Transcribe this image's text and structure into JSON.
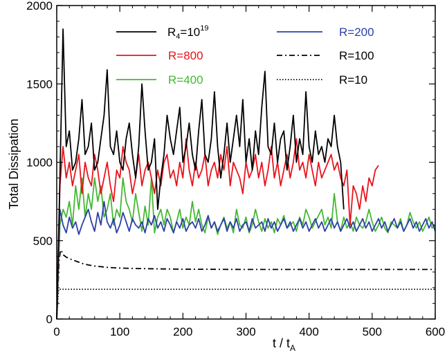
{
  "chart_data": {
    "type": "line",
    "title": "",
    "xlabel": "t / t",
    "xlabel_sub": "A",
    "ylabel": "Total Dissipation",
    "xlim": [
      0,
      600
    ],
    "ylim": [
      0,
      2000
    ],
    "xticks": [
      0,
      100,
      200,
      300,
      400,
      500,
      600
    ],
    "yticks": [
      0,
      500,
      1000,
      1500,
      2000
    ],
    "grid": false,
    "legend_placement": "top",
    "series": [
      {
        "name": "R",
        "name_sub": "4",
        "name_rest": "=10",
        "name_sup": "19",
        "color": "#000000",
        "dash": "solid",
        "x_start": 0,
        "x_step": 5,
        "values": [
          0,
          900,
          1850,
          1100,
          1200,
          950,
          1000,
          1150,
          1400,
          1050,
          1100,
          1250,
          950,
          1000,
          1150,
          1300,
          1590,
          1100,
          1050,
          1200,
          1000,
          950,
          1150,
          1250,
          1050,
          900,
          1100,
          1500,
          1200,
          950,
          1000,
          1150,
          700,
          900,
          1050,
          1300,
          1150,
          1050,
          1200,
          1350,
          1000,
          1100,
          1250,
          1050,
          950,
          1200,
          1400,
          1050,
          1000,
          1150,
          1450,
          1100,
          900,
          1050,
          1250,
          1000,
          1150,
          1300,
          1100,
          1400,
          1000,
          1150,
          950,
          1200,
          1050,
          1350,
          1580,
          1100,
          1050,
          1250,
          1000,
          1150,
          1200,
          950,
          1100,
          1300,
          1000,
          1150,
          1050,
          1450,
          1100,
          1000,
          1200,
          1050,
          1100,
          1000,
          1150,
          1100,
          1300,
          1100,
          1000,
          700
        ]
      },
      {
        "name": "R=800",
        "color": "#e8141c",
        "dash": "solid",
        "x_start": 0,
        "x_step": 5,
        "values": [
          0,
          850,
          1100,
          900,
          1000,
          850,
          950,
          1050,
          800,
          1000,
          900,
          850,
          1050,
          950,
          800,
          900,
          1000,
          850,
          750,
          950,
          900,
          1100,
          1000,
          950,
          800,
          900,
          1050,
          850,
          950,
          1000,
          900,
          800,
          950,
          850,
          1000,
          1050,
          900,
          950,
          850,
          1000,
          900,
          1150,
          950,
          850,
          1000,
          900,
          950,
          1050,
          850,
          950,
          1000,
          900,
          1050,
          950,
          1100,
          850,
          1000,
          950,
          900,
          800,
          1000,
          900,
          950,
          1050,
          900,
          1000,
          850,
          950,
          1100,
          900,
          1000,
          850,
          950,
          1050,
          900,
          1000,
          1150,
          950,
          1000,
          900,
          1050,
          950,
          850,
          1000,
          900,
          950,
          1000,
          1050,
          950,
          1000,
          900,
          850,
          950,
          600,
          850,
          800,
          700,
          850,
          750,
          900,
          850,
          950,
          980
        ]
      },
      {
        "name": "R=400",
        "color": "#44b832",
        "dash": "solid",
        "x_start": 0,
        "x_step": 5,
        "values": [
          0,
          600,
          700,
          650,
          750,
          600,
          850,
          700,
          900,
          650,
          800,
          700,
          900,
          750,
          850,
          650,
          700,
          800,
          600,
          700,
          650,
          900,
          750,
          700,
          620,
          800,
          680,
          560,
          720,
          600,
          900,
          550,
          650,
          700,
          600,
          700,
          650,
          550,
          620,
          700,
          580,
          650,
          600,
          750,
          620,
          700,
          600,
          550,
          650,
          580,
          620,
          540,
          600,
          650,
          580,
          620,
          550,
          700,
          600,
          580,
          650,
          550,
          600,
          700,
          620,
          560,
          640,
          580,
          620,
          550,
          640,
          600,
          660,
          580,
          600,
          620,
          560,
          650,
          600,
          700,
          650,
          580,
          620,
          660,
          700,
          600,
          650,
          580,
          800,
          620,
          560,
          650,
          580,
          620,
          560,
          650,
          600,
          580,
          620,
          700,
          620,
          560,
          600,
          650,
          580,
          550,
          620,
          600,
          580,
          640,
          560,
          600,
          680,
          620,
          580,
          620,
          560,
          600,
          650,
          580,
          600
        ]
      },
      {
        "name": "R=200",
        "color": "#2c3fa8",
        "dash": "solid",
        "x_start": 0,
        "x_step": 5,
        "values": [
          0,
          700,
          600,
          550,
          650,
          580,
          620,
          540,
          600,
          650,
          700,
          620,
          560,
          680,
          600,
          750,
          620,
          580,
          640,
          550,
          600,
          680,
          620,
          560,
          640,
          600,
          580,
          620,
          550,
          640,
          600,
          660,
          580,
          620,
          560,
          640,
          600,
          550,
          620,
          580,
          640,
          560,
          600,
          620,
          580,
          640,
          560,
          600,
          660,
          580,
          620,
          560,
          600,
          640,
          560,
          620,
          580,
          640,
          560,
          600,
          620,
          560,
          640,
          580,
          600,
          620,
          560,
          640,
          580,
          620,
          560,
          600,
          640,
          580,
          620,
          560,
          600,
          640,
          580,
          620,
          560,
          600,
          640,
          580,
          620,
          560,
          600,
          640,
          580,
          620,
          560,
          600,
          640,
          580,
          620,
          560,
          600,
          640,
          580,
          620,
          560,
          600,
          640,
          580,
          620,
          560,
          600,
          640,
          580,
          620,
          560,
          600,
          640,
          580,
          620,
          560,
          600,
          640,
          580,
          620,
          560
        ]
      },
      {
        "name": "R=100",
        "color": "#000000",
        "dash": "dashdot",
        "x": [
          0,
          2,
          4,
          6,
          8,
          10,
          15,
          20,
          30,
          40,
          50,
          60,
          80,
          100,
          130,
          160,
          200,
          300,
          400,
          500,
          600
        ],
        "values": [
          0,
          200,
          380,
          440,
          430,
          410,
          395,
          385,
          370,
          355,
          345,
          338,
          330,
          325,
          322,
          320,
          318,
          316,
          316,
          316,
          316
        ]
      },
      {
        "name": "R=10",
        "color": "#000000",
        "dash": "dotted",
        "x": [
          0,
          1,
          2,
          3,
          5,
          10,
          600
        ],
        "values": [
          0,
          60,
          140,
          185,
          190,
          190,
          190
        ]
      }
    ]
  }
}
